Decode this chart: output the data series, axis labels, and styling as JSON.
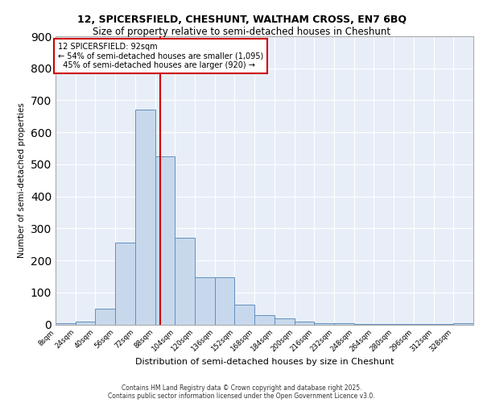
{
  "title1": "12, SPICERSFIELD, CHESHUNT, WALTHAM CROSS, EN7 6BQ",
  "title2": "Size of property relative to semi-detached houses in Cheshunt",
  "xlabel": "Distribution of semi-detached houses by size in Cheshunt",
  "ylabel": "Number of semi-detached properties",
  "bin_edges": [
    8,
    24,
    40,
    56,
    72,
    88,
    104,
    120,
    136,
    152,
    168,
    184,
    200,
    216,
    232,
    248,
    264,
    280,
    296,
    312,
    328,
    344
  ],
  "bin_labels": [
    "8sqm",
    "24sqm",
    "40sqm",
    "56sqm",
    "72sqm",
    "88sqm",
    "104sqm",
    "120sqm",
    "136sqm",
    "152sqm",
    "168sqm",
    "184sqm",
    "200sqm",
    "216sqm",
    "232sqm",
    "248sqm",
    "264sqm",
    "280sqm",
    "296sqm",
    "312sqm",
    "328sqm"
  ],
  "counts": [
    5,
    10,
    50,
    255,
    670,
    525,
    270,
    148,
    148,
    62,
    28,
    18,
    10,
    4,
    3,
    2,
    1,
    1,
    1,
    1,
    3
  ],
  "property_size": 92,
  "bar_color": "#c8d8ec",
  "bar_edge_color": "#6090c0",
  "vline_color": "#cc0000",
  "background_color": "#e8eef8",
  "annotation_line1": "12 SPICERSFIELD: 92sqm",
  "annotation_line2": "← 54% of semi-detached houses are smaller (1,095)",
  "annotation_line3": "  45% of semi-detached houses are larger (920) →",
  "annotation_box_color": "#ffffff",
  "annotation_box_edge": "#cc0000",
  "footnote": "Contains HM Land Registry data © Crown copyright and database right 2025.\nContains public sector information licensed under the Open Government Licence v3.0.",
  "ylim": [
    0,
    900
  ],
  "yticks": [
    0,
    100,
    200,
    300,
    400,
    500,
    600,
    700,
    800,
    900
  ]
}
